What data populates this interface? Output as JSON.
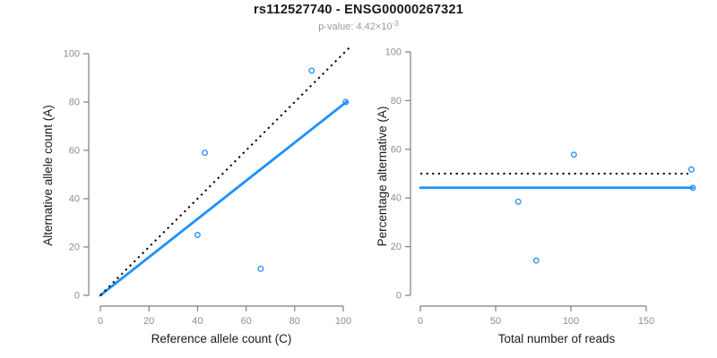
{
  "header": {
    "title": "rs112527740 - ENSG00000267321",
    "pvalue_prefix": "p-value: ",
    "pvalue_mantissa": "4.42",
    "pvalue_times": "×10",
    "pvalue_exponent": "-3"
  },
  "colors": {
    "accent_blue": "#1E90FF",
    "axis_line": "#7f7f7f",
    "tick_label": "#8e8e8e",
    "axis_title": "#1a1a1a",
    "dashed_line": "#000000",
    "background": "#ffffff"
  },
  "chart_data": [
    {
      "type": "scatter",
      "name": "allele-counts-scatter",
      "xlabel": "Reference allele count (C)",
      "ylabel": "Alternative allele count (A)",
      "xlim": [
        0,
        103
      ],
      "ylim": [
        0,
        103
      ],
      "xticks": [
        0,
        20,
        40,
        60,
        80,
        100
      ],
      "yticks": [
        0,
        20,
        40,
        60,
        80,
        100
      ],
      "points": [
        [
          40,
          25
        ],
        [
          43,
          59
        ],
        [
          66,
          11
        ],
        [
          87,
          93
        ],
        [
          101,
          80
        ]
      ],
      "lines": [
        {
          "name": "fit-line",
          "style": "solid",
          "color_key": "accent_blue",
          "x1": 0,
          "y1": 0,
          "x2": 101.5,
          "y2": 80.2
        },
        {
          "name": "identity-line",
          "style": "dotted",
          "color_key": "dashed_line",
          "x1": 0,
          "y1": 0,
          "x2": 102.5,
          "y2": 102.5
        }
      ]
    },
    {
      "type": "scatter",
      "name": "percentage-alternative-scatter",
      "xlabel": "Total number of reads",
      "ylabel": "Percentage alternative (A)",
      "xlim": [
        0,
        185
      ],
      "ylim": [
        0,
        103
      ],
      "xticks": [
        0,
        50,
        100,
        150
      ],
      "yticks": [
        0,
        20,
        40,
        60,
        80,
        100
      ],
      "points": [
        [
          65,
          38.5
        ],
        [
          77,
          14.3
        ],
        [
          102,
          57.8
        ],
        [
          180,
          51.7
        ],
        [
          181,
          44.2
        ]
      ],
      "lines": [
        {
          "name": "mean-percentage-line",
          "style": "solid",
          "color_key": "accent_blue",
          "x1": 0,
          "y1": 44.2,
          "x2": 181,
          "y2": 44.2
        },
        {
          "name": "fifty-percent-line",
          "style": "dotted",
          "color_key": "dashed_line",
          "x1": 0,
          "y1": 50,
          "x2": 178,
          "y2": 50
        }
      ]
    }
  ]
}
